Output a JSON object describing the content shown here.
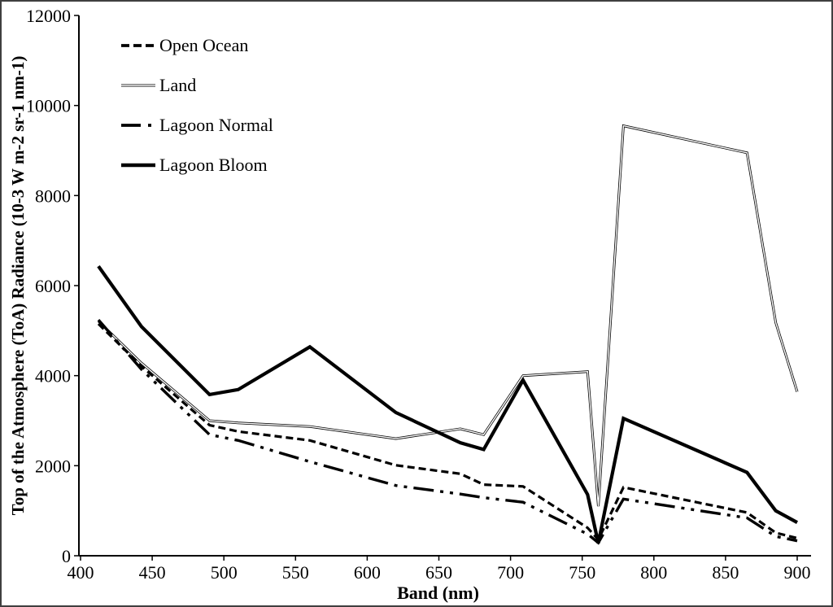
{
  "figure": {
    "background": "#ffffff",
    "border_color": "#3f3f3f"
  },
  "chart_data": {
    "type": "line",
    "title": "",
    "xlabel": "Band (nm)",
    "ylabel": "Top of the Atmosphere (ToA) Radiance (10-3 W m-2 sr-1 nm-1)",
    "xlim": [
      400,
      900
    ],
    "ylim": [
      0,
      12000
    ],
    "x_ticks": [
      400,
      450,
      500,
      550,
      600,
      650,
      700,
      750,
      800,
      850,
      900
    ],
    "y_ticks": [
      0,
      2000,
      4000,
      6000,
      8000,
      10000,
      12000
    ],
    "grid": false,
    "legend_position": "top-left-inside",
    "line_color": "#000000",
    "x": [
      412.5,
      442.5,
      490,
      510,
      560,
      620,
      665,
      681.25,
      708.75,
      753.75,
      761.25,
      778.75,
      865,
      885,
      900
    ],
    "series": [
      {
        "name": "Open Ocean",
        "style": "dashed",
        "values": [
          5150,
          4210,
          2900,
          2760,
          2560,
          2010,
          1820,
          1580,
          1540,
          620,
          360,
          1520,
          960,
          510,
          390
        ]
      },
      {
        "name": "Land",
        "style": "double-solid-thin",
        "values": [
          5210,
          4280,
          3000,
          2950,
          2870,
          2600,
          2820,
          2690,
          4000,
          4090,
          1100,
          9550,
          8950,
          5180,
          3640
        ]
      },
      {
        "name": "Lagoon Normal",
        "style": "dash-dot-dot",
        "values": [
          5240,
          4140,
          2690,
          2560,
          2090,
          1560,
          1370,
          1290,
          1190,
          480,
          290,
          1260,
          840,
          430,
          330
        ]
      },
      {
        "name": "Lagoon Bloom",
        "style": "solid-thick",
        "values": [
          6430,
          5090,
          3580,
          3690,
          4640,
          3180,
          2510,
          2360,
          3900,
          1360,
          280,
          3050,
          1850,
          1000,
          740
        ]
      }
    ]
  }
}
